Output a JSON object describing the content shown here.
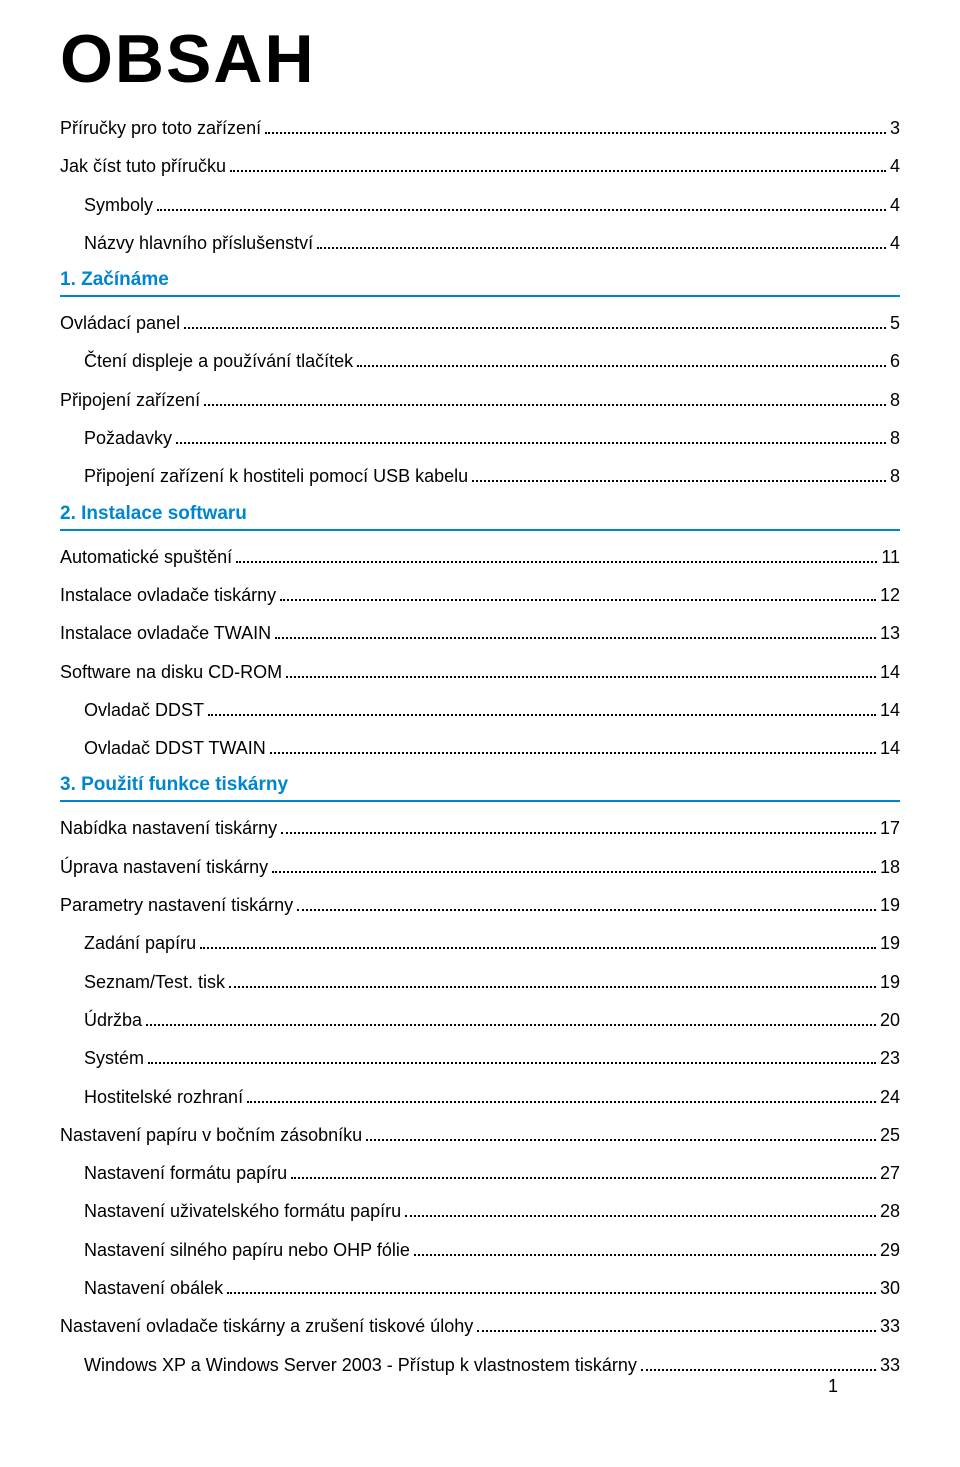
{
  "page": {
    "title": "OBSAH",
    "number": "1"
  },
  "theme": {
    "accent": "#0086d0",
    "text": "#000000",
    "title_fontsize": 68,
    "line_fontsize": 18
  },
  "toc": [
    {
      "type": "line",
      "indent": 0,
      "label": "Příručky pro toto zařízení",
      "page": "3"
    },
    {
      "type": "line",
      "indent": 0,
      "label": "Jak číst tuto příručku",
      "page": "4"
    },
    {
      "type": "line",
      "indent": 1,
      "label": "Symboly",
      "page": "4"
    },
    {
      "type": "line",
      "indent": 1,
      "label": "Názvy hlavního příslušenství",
      "page": "4"
    },
    {
      "type": "section",
      "label": "1. Začínáme"
    },
    {
      "type": "line",
      "indent": 0,
      "label": "Ovládací panel",
      "page": "5"
    },
    {
      "type": "line",
      "indent": 1,
      "label": "Čtení displeje a používání tlačítek",
      "page": "6"
    },
    {
      "type": "line",
      "indent": 0,
      "label": "Připojení zařízení",
      "page": "8"
    },
    {
      "type": "line",
      "indent": 1,
      "label": "Požadavky",
      "page": "8"
    },
    {
      "type": "line",
      "indent": 1,
      "label": "Připojení zařízení k hostiteli pomocí USB kabelu",
      "page": "8"
    },
    {
      "type": "section",
      "label": "2. Instalace softwaru"
    },
    {
      "type": "line",
      "indent": 0,
      "label": "Automatické spuštění",
      "page": "11"
    },
    {
      "type": "line",
      "indent": 0,
      "label": "Instalace ovladače tiskárny",
      "page": "12"
    },
    {
      "type": "line",
      "indent": 0,
      "label": "Instalace ovladače TWAIN",
      "page": "13"
    },
    {
      "type": "line",
      "indent": 0,
      "label": "Software na disku CD-ROM",
      "page": "14"
    },
    {
      "type": "line",
      "indent": 1,
      "label": "Ovladač DDST",
      "page": "14"
    },
    {
      "type": "line",
      "indent": 1,
      "label": "Ovladač DDST TWAIN",
      "page": "14"
    },
    {
      "type": "section",
      "label": "3. Použití funkce tiskárny"
    },
    {
      "type": "line",
      "indent": 0,
      "label": "Nabídka nastavení tiskárny",
      "page": "17"
    },
    {
      "type": "line",
      "indent": 0,
      "label": "Úprava nastavení tiskárny",
      "page": "18"
    },
    {
      "type": "line",
      "indent": 0,
      "label": "Parametry nastavení tiskárny",
      "page": "19"
    },
    {
      "type": "line",
      "indent": 1,
      "label": "Zadání papíru",
      "page": "19"
    },
    {
      "type": "line",
      "indent": 1,
      "label": "Seznam/Test. tisk",
      "page": "19"
    },
    {
      "type": "line",
      "indent": 1,
      "label": "Údržba",
      "page": "20"
    },
    {
      "type": "line",
      "indent": 1,
      "label": "Systém",
      "page": "23"
    },
    {
      "type": "line",
      "indent": 1,
      "label": "Hostitelské rozhraní",
      "page": "24"
    },
    {
      "type": "line",
      "indent": 0,
      "label": "Nastavení papíru v bočním zásobníku",
      "page": "25"
    },
    {
      "type": "line",
      "indent": 1,
      "label": "Nastavení formátu papíru",
      "page": "27"
    },
    {
      "type": "line",
      "indent": 1,
      "label": "Nastavení uživatelského formátu papíru",
      "page": "28"
    },
    {
      "type": "line",
      "indent": 1,
      "label": "Nastavení silného papíru nebo OHP fólie",
      "page": "29"
    },
    {
      "type": "line",
      "indent": 1,
      "label": "Nastavení obálek",
      "page": "30"
    },
    {
      "type": "line",
      "indent": 0,
      "label": "Nastavení ovladače tiskárny a zrušení tiskové úlohy",
      "page": "33"
    },
    {
      "type": "line",
      "indent": 1,
      "label": "Windows XP a Windows Server 2003 - Přístup k vlastnostem tiskárny",
      "page": "33"
    }
  ]
}
